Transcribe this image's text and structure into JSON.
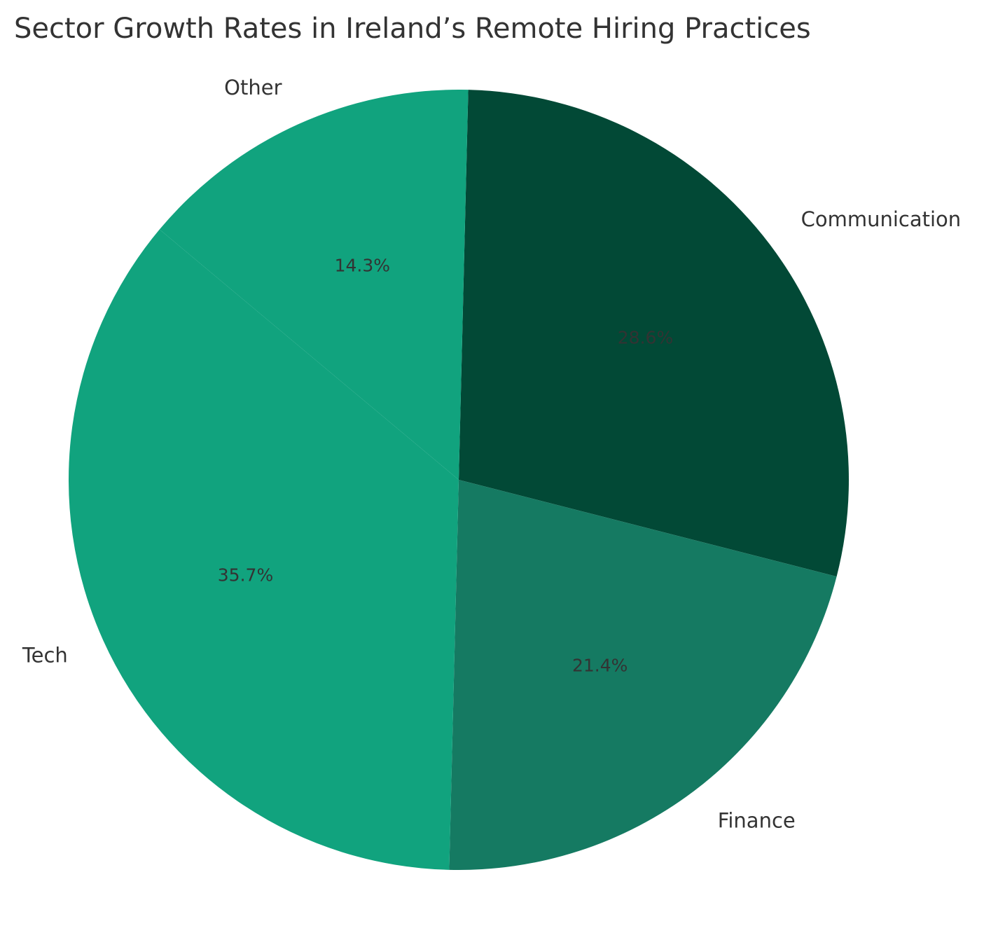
{
  "chart_data": {
    "type": "pie",
    "title": "Sector Growth Rates in Ireland’s Remote Hiring Practices",
    "start_angle_deg": 88.6,
    "direction": "clockwise",
    "legend": "none",
    "slices": [
      {
        "label": "Communication",
        "value": 28.6,
        "pct_label": "28.6%",
        "color": "#024936"
      },
      {
        "label": "Finance",
        "value": 21.4,
        "pct_label": "21.4%",
        "color": "#157a62"
      },
      {
        "label": "Tech",
        "value": 35.7,
        "pct_label": "35.7%",
        "color": "#11a37e"
      },
      {
        "label": "Other",
        "value": 14.3,
        "pct_label": "14.3%",
        "color": "#11a37e"
      }
    ]
  }
}
